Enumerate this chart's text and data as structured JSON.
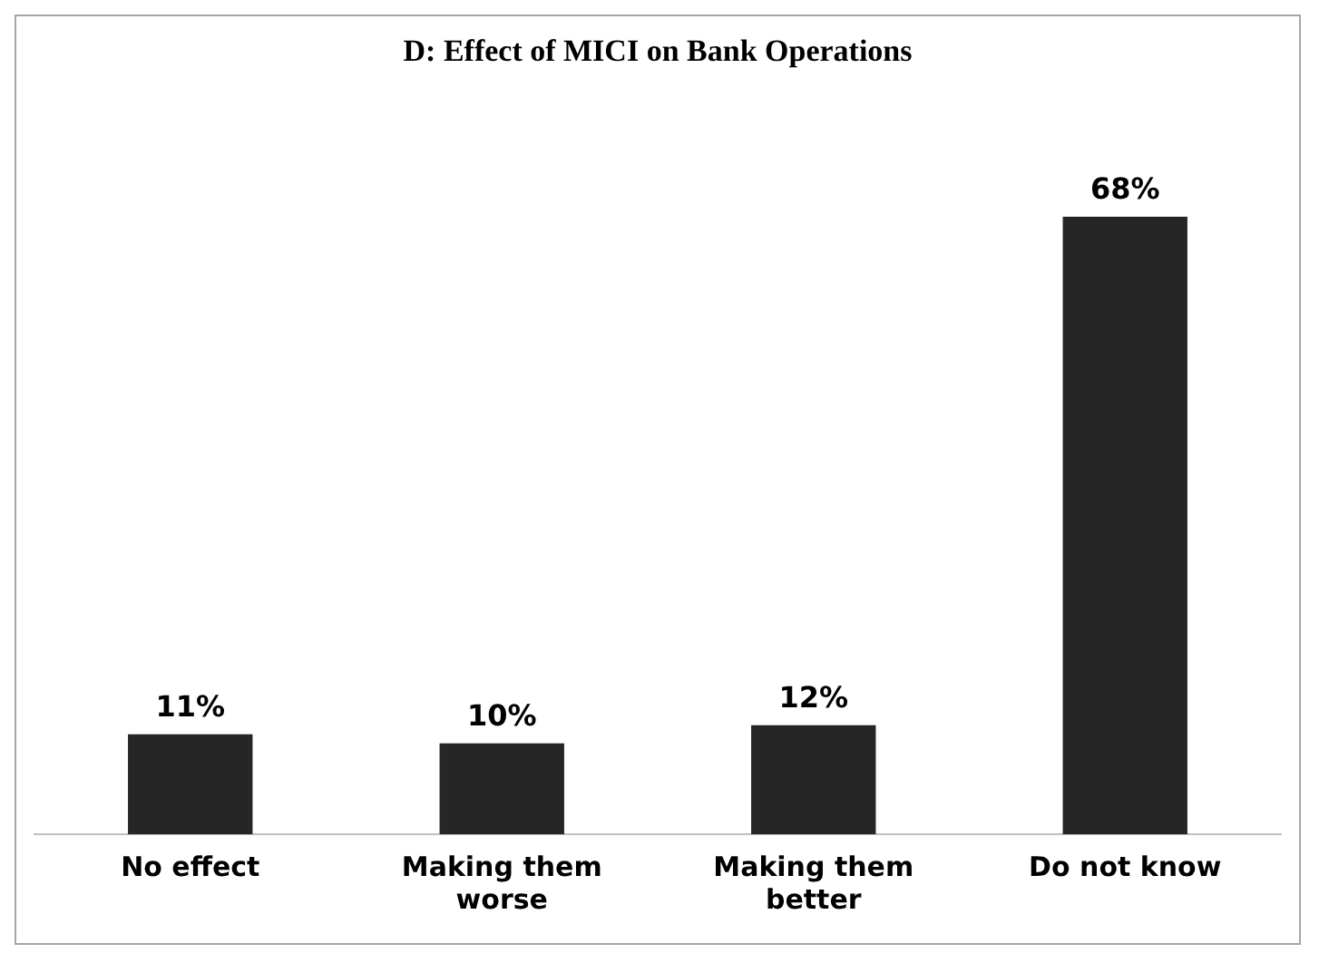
{
  "chart_data": {
    "type": "bar",
    "title": "D: Effect of MICI on Bank Operations",
    "categories": [
      "No effect",
      "Making them worse",
      "Making them better",
      "Do not know"
    ],
    "values": [
      11,
      10,
      12,
      68
    ],
    "color": "#262626",
    "value_labels": [
      "11%",
      "10%",
      "12%",
      "68%"
    ],
    "tick_labels": "x",
    "grid": false,
    "legend": false
  }
}
